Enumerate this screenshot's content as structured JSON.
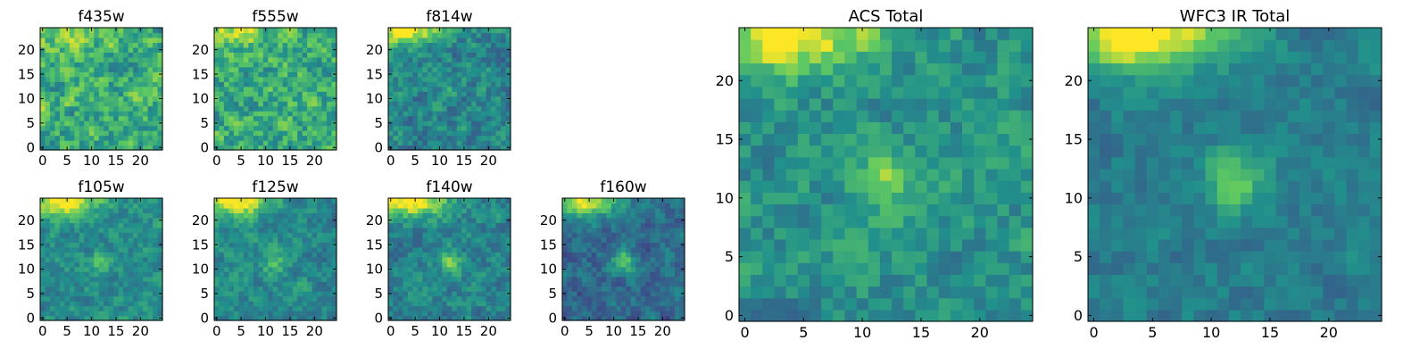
{
  "figure": {
    "background": "#ffffff",
    "colormap": "viridis",
    "colormap_stops": [
      "#440154",
      "#3b528b",
      "#21918c",
      "#5ec962",
      "#fde725"
    ]
  },
  "chart_data": [
    {
      "type": "heatmap",
      "title": "f435w",
      "grid_size": 25,
      "xticks": [
        0,
        5,
        10,
        15,
        20
      ],
      "yticks": [
        0,
        5,
        10,
        15,
        20
      ],
      "xlim": [
        0,
        25
      ],
      "ylim": [
        0,
        25
      ],
      "value_range": [
        0,
        1
      ],
      "noise_level": 0.5,
      "bright_corner": 0.15,
      "center_peak": 0.0,
      "base_level": 0.62,
      "seed": 11
    },
    {
      "type": "heatmap",
      "title": "f555w",
      "grid_size": 25,
      "xticks": [
        0,
        5,
        10,
        15,
        20
      ],
      "yticks": [
        0,
        5,
        10,
        15,
        20
      ],
      "xlim": [
        0,
        25
      ],
      "ylim": [
        0,
        25
      ],
      "value_range": [
        0,
        1
      ],
      "noise_level": 0.5,
      "bright_corner": 0.2,
      "center_peak": 0.05,
      "base_level": 0.62,
      "seed": 23
    },
    {
      "type": "heatmap",
      "title": "f814w",
      "grid_size": 25,
      "xticks": [
        0,
        5,
        10,
        15,
        20
      ],
      "yticks": [
        0,
        5,
        10,
        15,
        20
      ],
      "xlim": [
        0,
        25
      ],
      "ylim": [
        0,
        25
      ],
      "value_range": [
        0,
        1
      ],
      "noise_level": 0.38,
      "bright_corner": 0.55,
      "center_peak": 0.1,
      "base_level": 0.45,
      "seed": 37
    },
    {
      "type": "heatmap",
      "title": "f105w",
      "grid_size": 25,
      "xticks": [
        0,
        5,
        10,
        15,
        20
      ],
      "yticks": [
        0,
        5,
        10,
        15,
        20
      ],
      "xlim": [
        0,
        25
      ],
      "ylim": [
        0,
        25
      ],
      "value_range": [
        0,
        1
      ],
      "noise_level": 0.3,
      "bright_corner": 0.55,
      "center_peak": 0.2,
      "base_level": 0.48,
      "seed": 41
    },
    {
      "type": "heatmap",
      "title": "f125w",
      "grid_size": 25,
      "xticks": [
        0,
        5,
        10,
        15,
        20
      ],
      "yticks": [
        0,
        5,
        10,
        15,
        20
      ],
      "xlim": [
        0,
        25
      ],
      "ylim": [
        0,
        25
      ],
      "value_range": [
        0,
        1
      ],
      "noise_level": 0.3,
      "bright_corner": 0.55,
      "center_peak": 0.22,
      "base_level": 0.47,
      "seed": 53
    },
    {
      "type": "heatmap",
      "title": "f140w",
      "grid_size": 25,
      "xticks": [
        0,
        5,
        10,
        15,
        20
      ],
      "yticks": [
        0,
        5,
        10,
        15,
        20
      ],
      "xlim": [
        0,
        25
      ],
      "ylim": [
        0,
        25
      ],
      "value_range": [
        0,
        1
      ],
      "noise_level": 0.32,
      "bright_corner": 0.6,
      "center_peak": 0.28,
      "base_level": 0.45,
      "seed": 67
    },
    {
      "type": "heatmap",
      "title": "f160w",
      "grid_size": 25,
      "xticks": [
        0,
        5,
        10,
        15,
        20
      ],
      "yticks": [
        0,
        5,
        10,
        15,
        20
      ],
      "xlim": [
        0,
        25
      ],
      "ylim": [
        0,
        25
      ],
      "value_range": [
        0,
        1
      ],
      "noise_level": 0.3,
      "bright_corner": 0.6,
      "center_peak": 0.38,
      "base_level": 0.35,
      "seed": 79
    },
    {
      "type": "heatmap",
      "title": "ACS Total",
      "grid_size": 25,
      "xticks": [
        0,
        5,
        10,
        15,
        20
      ],
      "yticks": [
        0,
        5,
        10,
        15,
        20
      ],
      "xlim": [
        0,
        25
      ],
      "ylim": [
        0,
        25
      ],
      "value_range": [
        0,
        1
      ],
      "noise_level": 0.32,
      "bright_corner": 0.55,
      "center_peak": 0.3,
      "base_level": 0.5,
      "seed": 97
    },
    {
      "type": "heatmap",
      "title": "WFC3 IR Total",
      "grid_size": 25,
      "xticks": [
        0,
        5,
        10,
        15,
        20
      ],
      "yticks": [
        0,
        5,
        10,
        15,
        20
      ],
      "xlim": [
        0,
        25
      ],
      "ylim": [
        0,
        25
      ],
      "value_range": [
        0,
        1
      ],
      "noise_level": 0.22,
      "bright_corner": 0.65,
      "center_peak": 0.35,
      "base_level": 0.42,
      "seed": 113
    }
  ]
}
